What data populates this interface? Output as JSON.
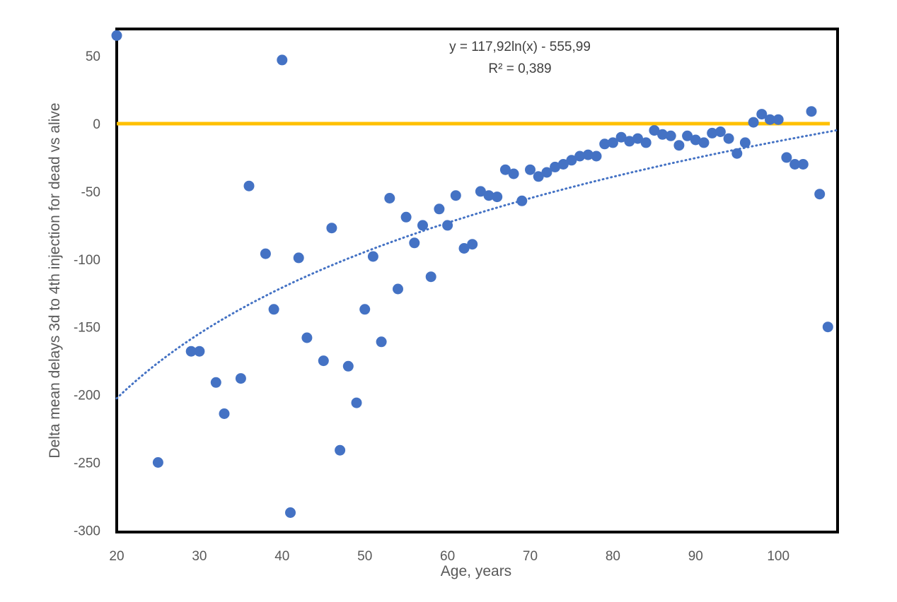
{
  "chart_data": {
    "type": "scatter",
    "xlabel": "Age, years",
    "ylabel": "Delta mean delays 3d to 4th injection for dead vs alive",
    "xlim": [
      20,
      107
    ],
    "ylim": [
      -300,
      65
    ],
    "x_ticks": [
      20,
      30,
      40,
      50,
      60,
      70,
      80,
      90,
      100
    ],
    "y_ticks": [
      50,
      0,
      -50,
      -100,
      -150,
      -200,
      -250,
      -300
    ],
    "grid": false,
    "legend": "none",
    "trendline": {
      "type": "logarithmic",
      "a": 117.92,
      "b": -555.99,
      "equation_label": "y = 117,92ln(x) - 555,99",
      "r2_label": "R² = 0,389",
      "color": "#4472C4",
      "style": "dotted"
    },
    "reference_line": {
      "y": 0,
      "color": "#FFC000"
    },
    "series": [
      {
        "marker_color": "#4472C4",
        "points": [
          [
            20,
            65
          ],
          [
            25,
            -250
          ],
          [
            29,
            -168
          ],
          [
            30,
            -168
          ],
          [
            32,
            -191
          ],
          [
            33,
            -214
          ],
          [
            35,
            -188
          ],
          [
            36,
            -46
          ],
          [
            38,
            -96
          ],
          [
            39,
            -137
          ],
          [
            40,
            47
          ],
          [
            41,
            -287
          ],
          [
            42,
            -99
          ],
          [
            43,
            -158
          ],
          [
            45,
            -175
          ],
          [
            46,
            -77
          ],
          [
            47,
            -241
          ],
          [
            48,
            -179
          ],
          [
            49,
            -206
          ],
          [
            50,
            -137
          ],
          [
            51,
            -98
          ],
          [
            52,
            -161
          ],
          [
            53,
            -55
          ],
          [
            54,
            -122
          ],
          [
            55,
            -69
          ],
          [
            56,
            -88
          ],
          [
            57,
            -75
          ],
          [
            58,
            -113
          ],
          [
            59,
            -63
          ],
          [
            60,
            -75
          ],
          [
            61,
            -53
          ],
          [
            62,
            -92
          ],
          [
            63,
            -89
          ],
          [
            64,
            -50
          ],
          [
            65,
            -53
          ],
          [
            66,
            -54
          ],
          [
            67,
            -34
          ],
          [
            68,
            -37
          ],
          [
            69,
            -57
          ],
          [
            70,
            -34
          ],
          [
            71,
            -39
          ],
          [
            72,
            -36
          ],
          [
            73,
            -32
          ],
          [
            74,
            -30
          ],
          [
            75,
            -27
          ],
          [
            76,
            -24
          ],
          [
            77,
            -23
          ],
          [
            78,
            -24
          ],
          [
            79,
            -15
          ],
          [
            80,
            -14
          ],
          [
            81,
            -10
          ],
          [
            82,
            -13
          ],
          [
            83,
            -11
          ],
          [
            84,
            -14
          ],
          [
            85,
            -5
          ],
          [
            86,
            -8
          ],
          [
            87,
            -9
          ],
          [
            88,
            -16
          ],
          [
            89,
            -9
          ],
          [
            90,
            -12
          ],
          [
            91,
            -14
          ],
          [
            92,
            -7
          ],
          [
            93,
            -6
          ],
          [
            94,
            -11
          ],
          [
            95,
            -22
          ],
          [
            96,
            -14
          ],
          [
            97,
            1
          ],
          [
            98,
            7
          ],
          [
            99,
            3
          ],
          [
            100,
            3
          ],
          [
            101,
            -25
          ],
          [
            102,
            -30
          ],
          [
            103,
            -30
          ],
          [
            104,
            9
          ],
          [
            105,
            -52
          ],
          [
            106,
            -150
          ]
        ]
      }
    ]
  }
}
